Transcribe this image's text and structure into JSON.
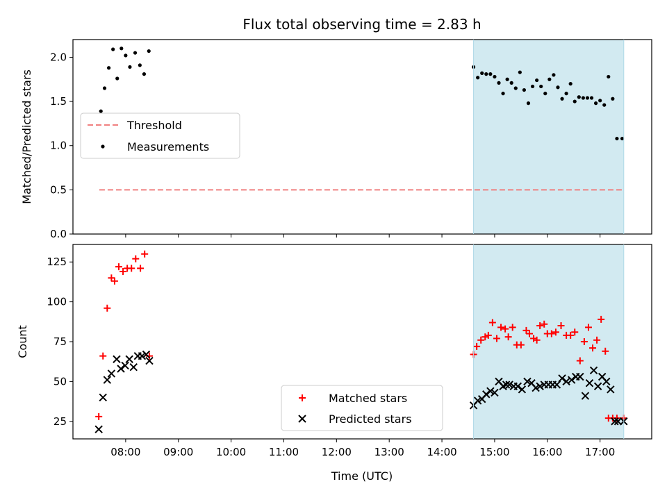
{
  "chart_data": [
    {
      "type": "scatter",
      "panel": "top",
      "title": "Flux total observing time = 2.83 h",
      "ylabel": "Matched/Predicted stars",
      "xlabel": "",
      "ylim": [
        0.0,
        2.2
      ],
      "yticks": [
        0.0,
        0.5,
        1.0,
        1.5,
        2.0
      ],
      "ytick_labels": [
        "0.0",
        "0.5",
        "1.0",
        "1.5",
        "2.0"
      ],
      "xlim": [
        7.0,
        17.98
      ],
      "shaded_span": [
        14.6,
        17.45
      ],
      "shaded_color": "#add8e6",
      "threshold": {
        "name": "Threshold",
        "value": 0.5,
        "x_start": 7.5,
        "x_end": 17.45,
        "color": "#f08080"
      },
      "legend": {
        "location": "center-left",
        "entries": [
          "Threshold",
          "Measurements"
        ]
      },
      "series": [
        {
          "name": "Measurements",
          "color": "#000000",
          "marker": "dot",
          "x": [
            7.53,
            7.6,
            7.68,
            7.76,
            7.84,
            7.92,
            8.0,
            8.08,
            8.18,
            8.27,
            8.35,
            8.44,
            14.6,
            14.68,
            14.76,
            14.84,
            14.92,
            15.0,
            15.08,
            15.16,
            15.24,
            15.32,
            15.4,
            15.48,
            15.56,
            15.64,
            15.72,
            15.8,
            15.88,
            15.96,
            16.04,
            16.12,
            16.2,
            16.28,
            16.36,
            16.44,
            16.52,
            16.6,
            16.68,
            16.76,
            16.84,
            16.92,
            17.0,
            17.08,
            17.16,
            17.24,
            17.32,
            17.42
          ],
          "y": [
            1.39,
            1.65,
            1.88,
            2.09,
            1.76,
            2.1,
            2.02,
            1.89,
            2.05,
            1.91,
            1.81,
            2.07,
            1.89,
            1.77,
            1.82,
            1.81,
            1.81,
            1.78,
            1.71,
            1.59,
            1.75,
            1.71,
            1.65,
            1.83,
            1.63,
            1.48,
            1.67,
            1.74,
            1.67,
            1.59,
            1.75,
            1.8,
            1.66,
            1.53,
            1.59,
            1.7,
            1.5,
            1.55,
            1.54,
            1.54,
            1.54,
            1.48,
            1.51,
            1.46,
            1.78,
            1.53,
            1.08,
            1.08
          ]
        }
      ]
    },
    {
      "type": "scatter",
      "panel": "bottom",
      "ylabel": "Count",
      "xlabel": "Time (UTC)",
      "ylim": [
        14,
        136
      ],
      "yticks": [
        25,
        50,
        75,
        100,
        125
      ],
      "ytick_labels": [
        "25",
        "50",
        "75",
        "100",
        "125"
      ],
      "xlim": [
        7.0,
        17.98
      ],
      "xticks": [
        8,
        9,
        10,
        11,
        12,
        13,
        14,
        15,
        16,
        17
      ],
      "xtick_labels": [
        "08:00",
        "09:00",
        "10:00",
        "11:00",
        "12:00",
        "13:00",
        "14:00",
        "15:00",
        "16:00",
        "17:00"
      ],
      "shaded_span": [
        14.6,
        17.45
      ],
      "shaded_color": "#add8e6",
      "legend": {
        "location": "lower-center",
        "entries": [
          "Matched stars",
          "Predicted stars"
        ]
      },
      "series": [
        {
          "name": "Matched stars",
          "color": "#ff0000",
          "marker": "plus",
          "x": [
            7.49,
            7.57,
            7.65,
            7.73,
            7.79,
            7.87,
            7.95,
            8.03,
            8.11,
            8.19,
            8.28,
            8.36,
            8.45,
            14.6,
            14.66,
            14.74,
            14.82,
            14.88,
            14.96,
            15.04,
            15.12,
            15.2,
            15.26,
            15.34,
            15.42,
            15.5,
            15.6,
            15.66,
            15.74,
            15.8,
            15.86,
            15.94,
            16.0,
            16.08,
            16.16,
            16.26,
            16.36,
            16.44,
            16.52,
            16.62,
            16.7,
            16.78,
            16.86,
            16.94,
            17.02,
            17.1,
            17.16,
            17.24,
            17.32,
            17.45
          ],
          "y": [
            28,
            66,
            96,
            115,
            113,
            122,
            119,
            121,
            121,
            127,
            121,
            130,
            66,
            67,
            72,
            76,
            78,
            79,
            87,
            77,
            84,
            83,
            78,
            84,
            73,
            73,
            82,
            80,
            77,
            76,
            85,
            86,
            80,
            80,
            81,
            85,
            79,
            79,
            81,
            63,
            75,
            84,
            71,
            76,
            89,
            69,
            27,
            27,
            27,
            27
          ]
        },
        {
          "name": "Predicted stars",
          "color": "#000000",
          "marker": "x",
          "x": [
            7.49,
            7.57,
            7.65,
            7.73,
            7.83,
            7.91,
            7.99,
            8.07,
            8.15,
            8.23,
            8.31,
            8.39,
            8.45,
            14.6,
            14.68,
            14.76,
            14.84,
            14.92,
            15.0,
            15.08,
            15.16,
            15.22,
            15.28,
            15.36,
            15.44,
            15.52,
            15.62,
            15.7,
            15.78,
            15.86,
            15.94,
            16.02,
            16.1,
            16.18,
            16.28,
            16.36,
            16.46,
            16.54,
            16.62,
            16.72,
            16.8,
            16.88,
            16.96,
            17.04,
            17.12,
            17.2,
            17.28,
            17.34,
            17.45
          ],
          "y": [
            20,
            40,
            51,
            55,
            64,
            58,
            60,
            64,
            59,
            66,
            66,
            67,
            63,
            35,
            38,
            39,
            42,
            44,
            43,
            50,
            47,
            48,
            48,
            47,
            47,
            45,
            50,
            49,
            46,
            47,
            48,
            48,
            48,
            48,
            52,
            50,
            51,
            53,
            53,
            41,
            49,
            57,
            47,
            53,
            50,
            45,
            25,
            25,
            25
          ]
        }
      ]
    }
  ]
}
